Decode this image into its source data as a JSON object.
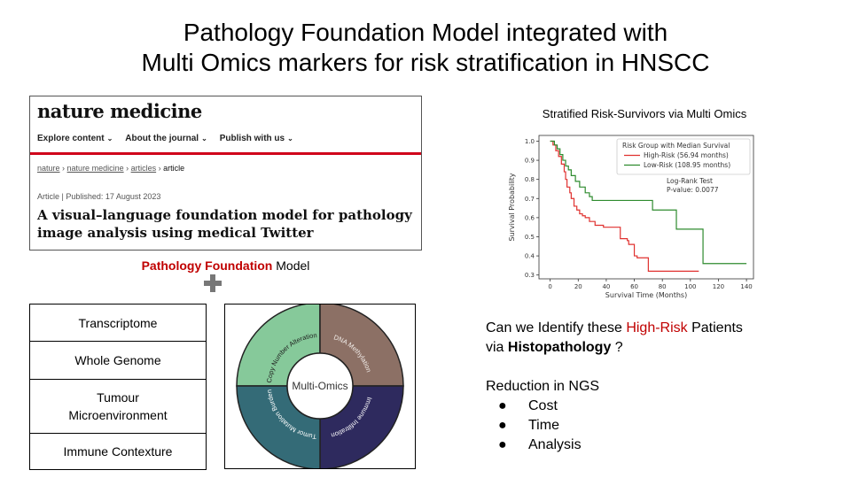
{
  "title": {
    "line1": "Pathology Foundation Model integrated with",
    "line2": "Multi Omics markers for risk stratification in HNSCC"
  },
  "paper": {
    "brand": "nature medicine",
    "nav": [
      "Explore content",
      "About the journal",
      "Publish with us"
    ],
    "breadcrumbs": [
      "nature",
      "nature medicine",
      "articles",
      "article"
    ],
    "meta": "Article | Published: 17 August 2023",
    "title": "A visual–language foundation model for pathology image analysis using medical Twitter"
  },
  "pfm": {
    "highlight": "Pathology Foundation",
    "rest": " Model"
  },
  "omics_list": [
    "Transcriptome",
    "Whole Genome",
    "Tumour Microenvironment",
    "Immune Contexture"
  ],
  "donut": {
    "center": "Multi-Omics",
    "segments": [
      {
        "label": "Copy Number Alteration",
        "color": "#86c99a"
      },
      {
        "label": "DNA Methylation",
        "color": "#8c7065"
      },
      {
        "label": "Immune Infiltration",
        "color": "#2e2a5e"
      },
      {
        "label": "Tumor Mutation Burden",
        "color": "#346b77"
      }
    ]
  },
  "km_title": "Stratified Risk-Survivors via Multi Omics",
  "chart_data": {
    "type": "line",
    "title": "",
    "xlabel": "Survival Time (Months)",
    "ylabel": "Survival Probability",
    "xlim": [
      -8,
      145
    ],
    "ylim": [
      0.28,
      1.03
    ],
    "xticks": [
      0,
      20,
      40,
      60,
      80,
      100,
      120,
      140
    ],
    "yticks": [
      0.3,
      0.4,
      0.5,
      0.6,
      0.7,
      0.8,
      0.9,
      1.0
    ],
    "legend_title": "Risk Group with Median Survival",
    "legend_position": "top-right",
    "annotation": [
      "Log-Rank Test",
      "P-value: 0.0077"
    ],
    "series": [
      {
        "name": "High-Risk (56.94 months)",
        "color": "#e0312f",
        "x": [
          0,
          2,
          4,
          6,
          8,
          10,
          11,
          12,
          14,
          15,
          17,
          19,
          21,
          23,
          25,
          28,
          32,
          38,
          50,
          55,
          56,
          60,
          62,
          70,
          106
        ],
        "y": [
          1.0,
          0.98,
          0.95,
          0.92,
          0.88,
          0.84,
          0.8,
          0.76,
          0.73,
          0.7,
          0.66,
          0.64,
          0.62,
          0.61,
          0.6,
          0.58,
          0.56,
          0.55,
          0.49,
          0.48,
          0.46,
          0.4,
          0.39,
          0.32,
          0.32
        ]
      },
      {
        "name": "Low-Risk (108.95 months)",
        "color": "#2e8b2e",
        "x": [
          0,
          3,
          5,
          7,
          9,
          11,
          13,
          15,
          18,
          21,
          25,
          28,
          30,
          40,
          70,
          73,
          88,
          90,
          107,
          109,
          140
        ],
        "y": [
          1.0,
          0.98,
          0.96,
          0.93,
          0.9,
          0.87,
          0.85,
          0.82,
          0.79,
          0.76,
          0.73,
          0.71,
          0.69,
          0.69,
          0.69,
          0.64,
          0.64,
          0.54,
          0.54,
          0.36,
          0.36
        ]
      }
    ]
  },
  "right": {
    "q_pre": "Can we Identify these ",
    "q_red": "High-Risk",
    "q_post": " Patients",
    "q2_pre": "via ",
    "q2_bold": "Histopathology",
    "q2_post": " ?",
    "reduction": "Reduction in NGS",
    "bullet_symbol": "●",
    "bullets": [
      "Cost",
      "Time",
      "Analysis"
    ]
  }
}
